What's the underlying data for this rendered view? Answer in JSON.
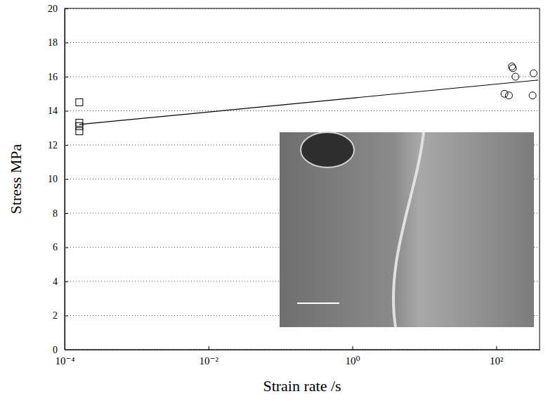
{
  "chart_data": {
    "type": "scatter",
    "x_label": "Strain rate /s",
    "y_label": "Stress MPa",
    "log": "x",
    "grid": true,
    "xlim": [
      0.0001,
      400
    ],
    "xticks": [
      {
        "value": 0.0001,
        "label": "10⁻⁴"
      },
      {
        "value": 0.01,
        "label": "10⁻²"
      },
      {
        "value": 1,
        "label": "10⁰"
      },
      {
        "value": 100,
        "label": "10²"
      }
    ],
    "ylim": [
      0,
      20
    ],
    "yticks": [
      0,
      2,
      4,
      6,
      8,
      10,
      12,
      14,
      16,
      18,
      20
    ],
    "series": [
      {
        "type": "scatter",
        "marker": "square",
        "color": "#000000",
        "x": [
          0.00016,
          0.00016,
          0.00016,
          0.00016
        ],
        "values": [
          14.5,
          13.3,
          13.1,
          12.8
        ]
      },
      {
        "type": "scatter",
        "marker": "circle",
        "color": "#000000",
        "x": [
          130,
          150,
          165,
          170,
          185,
          330,
          320
        ],
        "values": [
          15.0,
          14.9,
          16.6,
          16.5,
          16.0,
          16.2,
          14.9
        ]
      },
      {
        "type": "line",
        "line_style": "solid",
        "color": "#000000",
        "x": [
          0.00016,
          380
        ],
        "values": [
          13.2,
          15.8
        ]
      }
    ]
  }
}
